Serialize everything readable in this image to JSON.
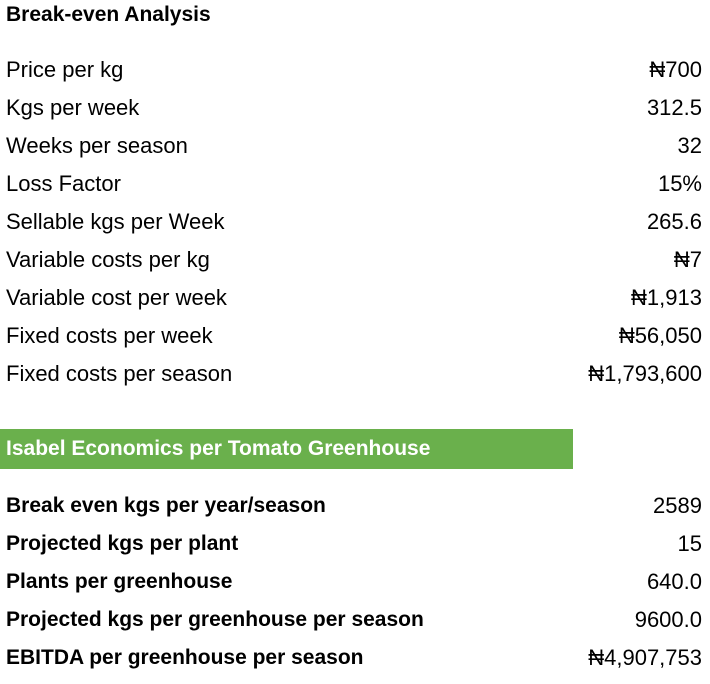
{
  "breakeven": {
    "title": "Break-even Analysis",
    "rows": [
      {
        "label": "Price per kg",
        "value": "₦700"
      },
      {
        "label": "Kgs per week",
        "value": "312.5"
      },
      {
        "label": "Weeks per season",
        "value": "32"
      },
      {
        "label": "Loss Factor",
        "value": "15%"
      },
      {
        "label": "Sellable kgs per Week",
        "value": "265.6"
      },
      {
        "label": "Variable costs per kg",
        "value": "₦7"
      },
      {
        "label": "Variable cost per week",
        "value": "₦1,913"
      },
      {
        "label": "Fixed costs per week",
        "value": "₦56,050"
      },
      {
        "label": "Fixed costs per season",
        "value": "₦1,793,600"
      }
    ]
  },
  "economics": {
    "title": "Isabel Economics per Tomato Greenhouse",
    "banner_color": "#6ab04c",
    "rows": [
      {
        "label": "Break even kgs per year/season",
        "value": "2589"
      },
      {
        "label": "Projected kgs per plant",
        "value": "15"
      },
      {
        "label": "Plants per greenhouse",
        "value": "640.0"
      },
      {
        "label": "Projected kgs per greenhouse per season",
        "value": "9600.0"
      },
      {
        "label": "EBITDA per greenhouse per season",
        "value": "₦4,907,753"
      }
    ]
  }
}
